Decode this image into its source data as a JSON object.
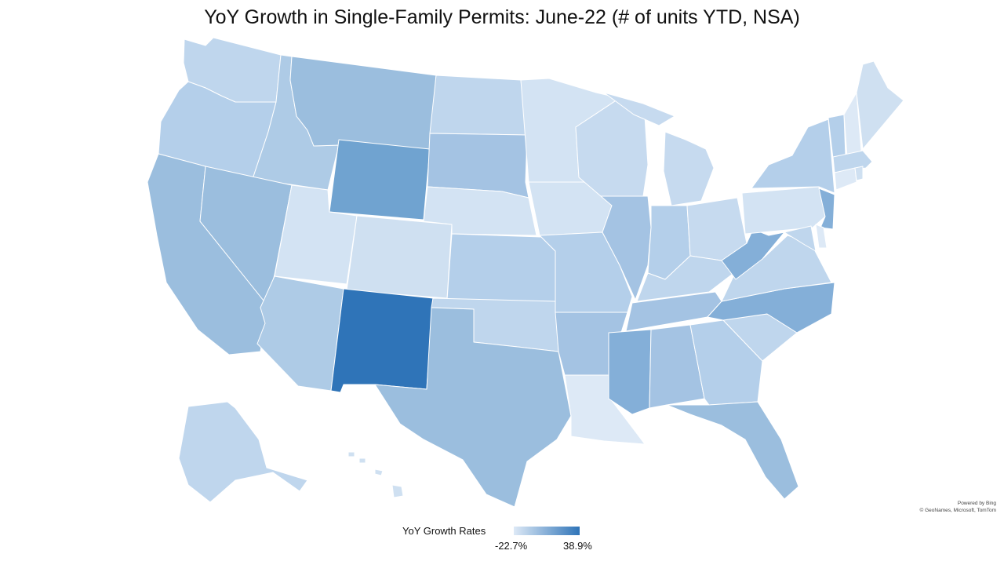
{
  "title": "YoY Growth in Single-Family Permits: June-22 (# of units YTD, NSA)",
  "legend": {
    "title": "YoY Growth Rates",
    "min_label": "-22.7%",
    "max_label": "38.9%",
    "min_color": "#dde9f6",
    "max_color": "#2f74b8"
  },
  "credit": {
    "line1": "Powered by Bing",
    "line2": "© GeoNames, Microsoft, TomTom"
  },
  "colors": {
    "darkest": "#2f74b8",
    "dark": "#70a3d0",
    "medium_dark": "#84afd8",
    "medium": "#9bbede",
    "medium_light": "#aecbe6",
    "light": "#bfd6ed",
    "lighter": "#cfe0f1",
    "lightest": "#dde9f6"
  }
}
